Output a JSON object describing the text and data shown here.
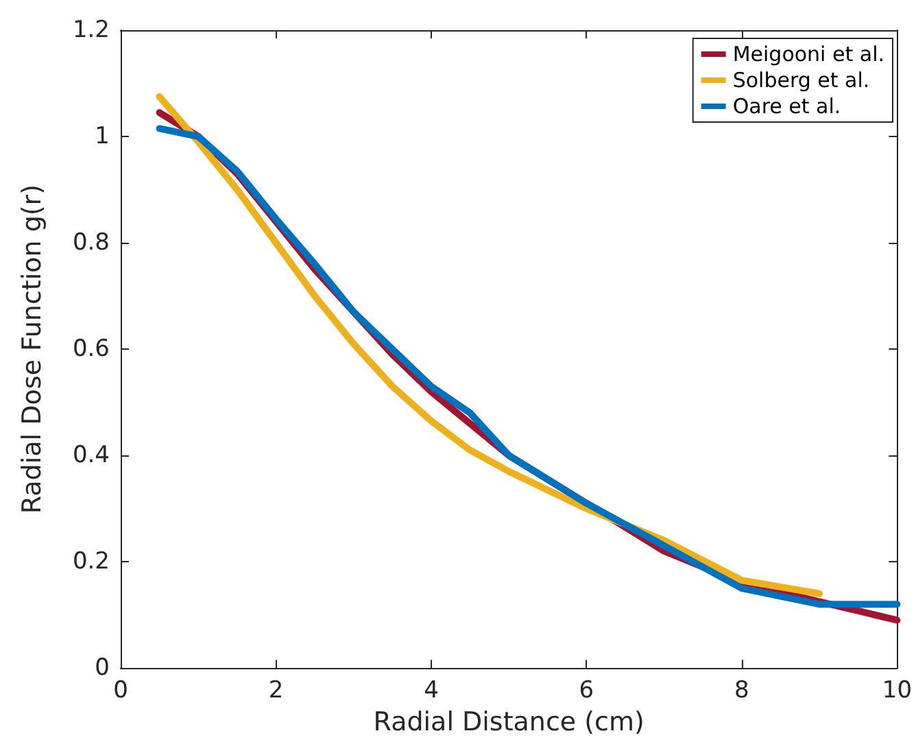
{
  "chart_data": {
    "type": "line",
    "xlabel": "Radial Distance (cm)",
    "ylabel": "Radial Dose Function g(r)",
    "xlim": [
      0,
      10
    ],
    "xticks": [
      0,
      2,
      4,
      6,
      8,
      10
    ],
    "ylim": [
      0,
      1.2
    ],
    "yticks": [
      0,
      0.2,
      0.4,
      0.6,
      0.8,
      1,
      1.2
    ],
    "grid": false,
    "legend": "top right",
    "marker": "none",
    "line_style": "solid",
    "series": [
      {
        "name": "Meigooni et al.",
        "color": "#a2142f",
        "x": [
          0.5,
          1,
          1.5,
          2,
          2.5,
          3,
          3.5,
          4,
          4.5,
          5,
          6,
          7,
          8,
          9,
          10
        ],
        "values": [
          1.045,
          1.0,
          0.93,
          0.84,
          0.75,
          0.67,
          0.59,
          0.52,
          0.46,
          0.4,
          0.31,
          0.22,
          0.16,
          0.125,
          0.09
        ]
      },
      {
        "name": "Solberg et al.",
        "color": "#edb120",
        "x": [
          0.5,
          1,
          1.5,
          2,
          2.5,
          3,
          3.5,
          4,
          4.5,
          5,
          6,
          7,
          8,
          9
        ],
        "values": [
          1.075,
          0.99,
          0.9,
          0.8,
          0.7,
          0.61,
          0.53,
          0.465,
          0.41,
          0.37,
          0.3,
          0.24,
          0.165,
          0.14
        ]
      },
      {
        "name": "Oare et al.",
        "color": "#0072bd",
        "x": [
          0.5,
          1,
          1.5,
          2,
          2.5,
          3,
          3.5,
          4,
          4.5,
          5,
          6,
          7,
          8,
          9,
          10
        ],
        "values": [
          1.015,
          1.0,
          0.935,
          0.845,
          0.76,
          0.67,
          0.6,
          0.53,
          0.48,
          0.4,
          0.31,
          0.23,
          0.15,
          0.12,
          0.12
        ]
      }
    ]
  }
}
